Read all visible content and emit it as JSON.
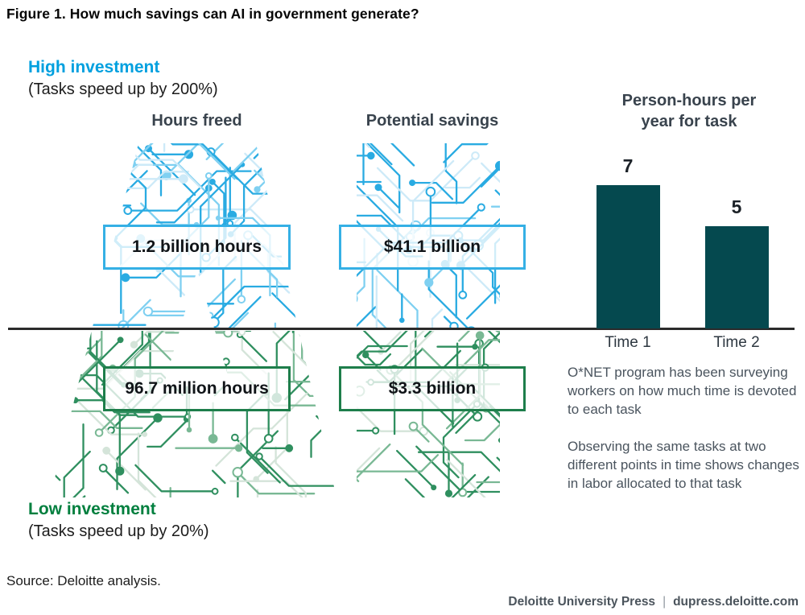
{
  "title": "Figure 1. How much savings can AI in government generate?",
  "scenarios": {
    "high": {
      "label": "High investment",
      "subtitle": "(Tasks speed up by 200%)",
      "hours": "1.2 billion hours",
      "savings": "$41.1 billion"
    },
    "low": {
      "label": "Low investment",
      "subtitle": "(Tasks speed up by 20%)",
      "hours": "96.7 million hours",
      "savings": "$3.3 billion"
    }
  },
  "columns": {
    "hours_header": "Hours freed",
    "savings_header": "Potential savings"
  },
  "chart_data": {
    "type": "bar",
    "title": "Person-hours per year for task",
    "categories": [
      "Time 1",
      "Time 2"
    ],
    "values": [
      7,
      5
    ],
    "value_labels": [
      "7",
      "5"
    ],
    "ylim": [
      0,
      8
    ],
    "bar_color": "#05494f",
    "grid": false,
    "legend": false
  },
  "notes": [
    "O*NET program has been surveying workers on how much time is devoted to each task",
    "Observing the same tasks at two different points in time shows changes in labor allocated to that task"
  ],
  "source": "Source: Deloitte analysis.",
  "footer": {
    "brand": "Deloitte University Press",
    "separator": "|",
    "site": "dupress.deloitte.com"
  },
  "colors": {
    "accent_blue": "#00a0df",
    "accent_green": "#007f3e",
    "circuit_blue": "#29abe2",
    "circuit_blue_light": "#7fd0f1",
    "circuit_blue_pale": "#cdeaf8",
    "circuit_green": "#2f8f5f",
    "circuit_green_light": "#79b894",
    "circuit_green_pale": "#d4e4d9",
    "box_border_blue": "#35b0e5",
    "box_border_green": "#1e7e4b",
    "bar_teal": "#05494f",
    "heading": "#39434d",
    "body_text": "#4a545e",
    "divider": "#2b2b2b"
  }
}
